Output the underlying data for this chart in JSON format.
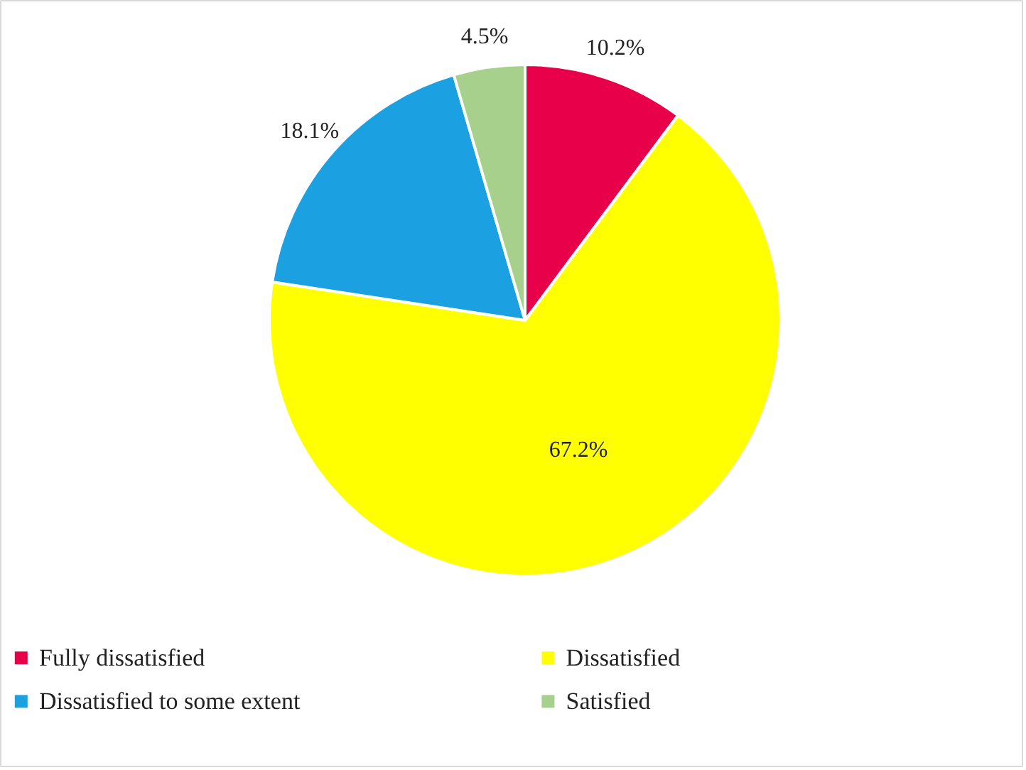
{
  "chart_data": {
    "type": "pie",
    "categories": [
      "Fully dissatisfied",
      "Dissatisfied",
      "Dissatisfied to some extent",
      "Satisfied"
    ],
    "values": [
      10.2,
      67.2,
      18.1,
      4.5
    ],
    "value_labels": [
      "10.2%",
      "67.2%",
      "18.1%",
      "4.5%"
    ],
    "colors": [
      "#e8004a",
      "#ffff00",
      "#1ba1e2",
      "#a8d08d"
    ],
    "legend": "bottom"
  }
}
